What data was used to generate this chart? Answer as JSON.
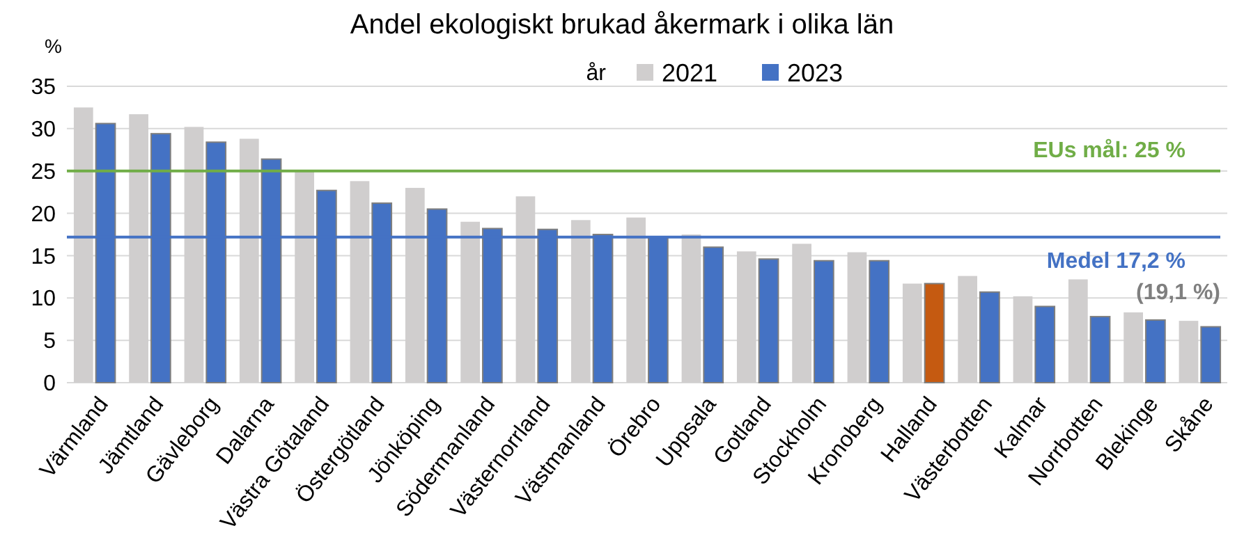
{
  "chart_data": {
    "type": "bar",
    "title": "Andel ekologiskt brukad åkermark i olika län",
    "ylabel": "%",
    "legend_title": "år",
    "legend": "top",
    "categories": [
      "Värmland",
      "Jämtland",
      "Gävleborg",
      "Dalarna",
      "Västra Götaland",
      "Östergötland",
      "Jönköping",
      "Södermanland",
      "Västernorrland",
      "Västmanland",
      "Örebro",
      "Uppsala",
      "Gotland",
      "Stockholm",
      "Kronoberg",
      "Halland",
      "Västerbotten",
      "Kalmar",
      "Norrbotten",
      "Blekinge",
      "Skåne"
    ],
    "series": [
      {
        "name": "2021",
        "color": "#d0cece",
        "values": [
          32.5,
          31.7,
          30.2,
          28.8,
          25.0,
          23.8,
          23.0,
          19.0,
          22.0,
          19.2,
          19.5,
          17.5,
          15.5,
          16.4,
          15.4,
          11.7,
          12.6,
          10.2,
          12.2,
          8.3,
          7.3
        ]
      },
      {
        "name": "2023",
        "color": "#4472c4",
        "colors": [
          "#4472c4",
          "#4472c4",
          "#4472c4",
          "#4472c4",
          "#4472c4",
          "#4472c4",
          "#4472c4",
          "#4472c4",
          "#4472c4",
          "#4472c4",
          "#4472c4",
          "#4472c4",
          "#4472c4",
          "#4472c4",
          "#4472c4",
          "#c55a11",
          "#4472c4",
          "#4472c4",
          "#4472c4",
          "#4472c4",
          "#4472c4"
        ],
        "values": [
          30.6,
          29.4,
          28.4,
          26.4,
          22.7,
          21.2,
          20.5,
          18.2,
          18.1,
          17.5,
          17.2,
          16.0,
          14.6,
          14.4,
          14.4,
          11.7,
          10.7,
          9.0,
          7.8,
          7.4,
          6.6
        ]
      }
    ],
    "ylim": [
      0,
      35
    ],
    "yticks": [
      0,
      5,
      10,
      15,
      20,
      25,
      30,
      35
    ],
    "grid": "y",
    "ref_lines": [
      {
        "axis": "y",
        "value": 25,
        "label": "EUs mål: 25 %",
        "color": "#70ad47"
      },
      {
        "axis": "y",
        "value": 17.2,
        "label": "Medel 17,2 %",
        "color": "#4472c4"
      }
    ],
    "annotations": [
      "(19,1 %)"
    ]
  }
}
